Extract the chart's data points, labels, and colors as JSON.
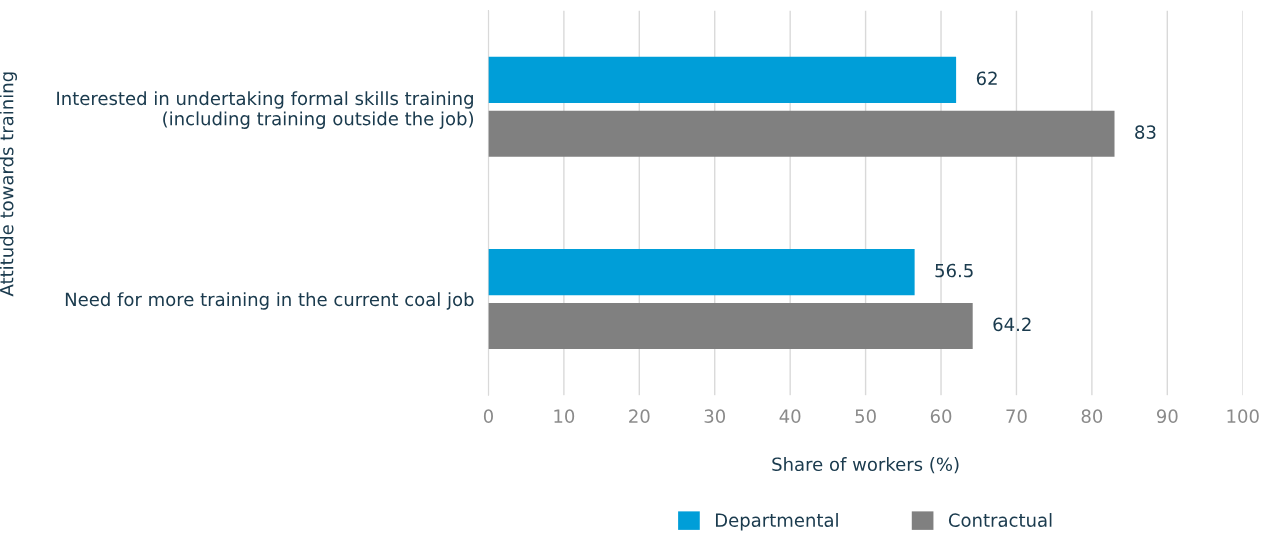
{
  "chart_data": {
    "type": "bar",
    "orientation": "horizontal",
    "categories": [
      "Interested in undertaking formal skills training\n(including training outside the job)",
      "Need for more training in the current coal job"
    ],
    "series": [
      {
        "name": "Departmental",
        "color": "#009ed8",
        "values": [
          62,
          56.5
        ]
      },
      {
        "name": "Contractual",
        "color": "#808080",
        "values": [
          83,
          64.2
        ]
      }
    ],
    "xlabel": "Share of workers (%)",
    "ylabel": "Attitude towards training",
    "xlim": [
      0,
      100
    ],
    "xticks": [
      0,
      10,
      20,
      30,
      40,
      50,
      60,
      70,
      80,
      90,
      100
    ],
    "grid": "x",
    "legend": "bottom",
    "data_labels": true
  }
}
